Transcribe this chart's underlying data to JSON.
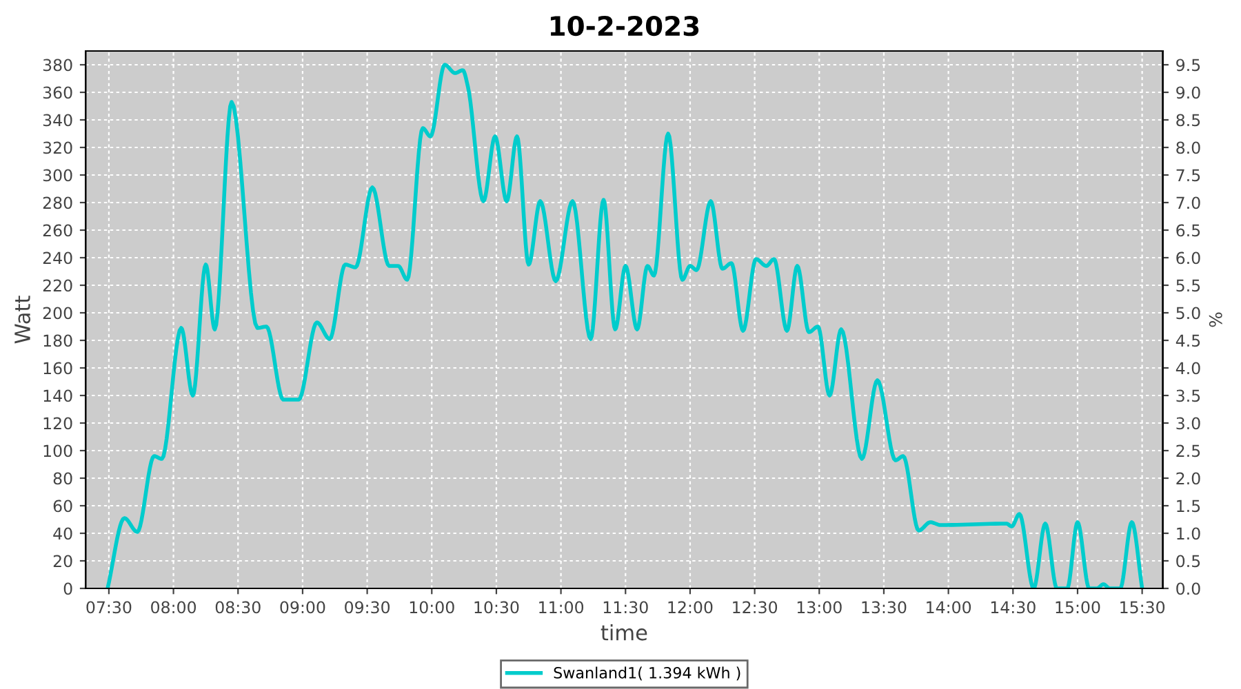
{
  "chart_data": {
    "type": "line",
    "title": "10-2-2023",
    "xlabel": "time",
    "ylabel": "Watt",
    "y2label": "%",
    "series": [
      {
        "name": "Swanland1( 1.394 kWh )",
        "color": "#00cccc",
        "x": [
          7.49,
          7.62,
          7.72,
          7.85,
          7.91,
          8.06,
          8.15,
          8.25,
          8.32,
          8.45,
          8.65,
          8.72,
          8.85,
          8.97,
          9.11,
          9.21,
          9.33,
          9.41,
          9.54,
          9.67,
          9.74,
          9.81,
          9.93,
          9.99,
          10.1,
          10.18,
          10.24,
          10.28,
          10.4,
          10.49,
          10.58,
          10.66,
          10.75,
          10.84,
          10.96,
          11.09,
          11.23,
          11.33,
          11.42,
          11.5,
          11.59,
          11.67,
          11.72,
          11.83,
          11.94,
          12.0,
          12.05,
          12.16,
          12.25,
          12.32,
          12.41,
          12.51,
          12.59,
          12.65,
          12.75,
          12.83,
          12.92,
          12.99,
          13.08,
          13.17,
          13.33,
          13.45,
          13.59,
          13.65,
          13.77,
          13.86,
          13.94,
          14.45,
          14.49,
          14.55,
          14.66,
          14.75,
          14.84,
          14.92,
          15.0,
          15.09,
          15.15,
          15.2,
          15.25,
          15.33,
          15.42,
          15.5
        ],
        "values": [
          0,
          51,
          41,
          96,
          94,
          189,
          140,
          235,
          188,
          353,
          189,
          190,
          137,
          137,
          193,
          181,
          235,
          233,
          291,
          234,
          234,
          224,
          334,
          328,
          380,
          374,
          376,
          364,
          281,
          328,
          281,
          328,
          235,
          281,
          223,
          281,
          181,
          282,
          188,
          234,
          188,
          234,
          227,
          330,
          224,
          234,
          231,
          281,
          232,
          236,
          187,
          239,
          234,
          239,
          187,
          234,
          186,
          190,
          140,
          188,
          94,
          151,
          93,
          96,
          42,
          48,
          46,
          47,
          45,
          54,
          0,
          47,
          0,
          0,
          48,
          0,
          0,
          3,
          0,
          0,
          48,
          0
        ]
      }
    ],
    "xlim": [
      7.32,
      15.66
    ],
    "xticks": [
      {
        "value": 7.5,
        "label": "07:30"
      },
      {
        "value": 8,
        "label": "08:00"
      },
      {
        "value": 8.5,
        "label": "08:30"
      },
      {
        "value": 9,
        "label": "09:00"
      },
      {
        "value": 9.5,
        "label": "09:30"
      },
      {
        "value": 10,
        "label": "10:00"
      },
      {
        "value": 10.5,
        "label": "10:30"
      },
      {
        "value": 11,
        "label": "11:00"
      },
      {
        "value": 11.5,
        "label": "11:30"
      },
      {
        "value": 12,
        "label": "12:00"
      },
      {
        "value": 12.5,
        "label": "12:30"
      },
      {
        "value": 13,
        "label": "13:00"
      },
      {
        "value": 13.5,
        "label": "13:30"
      },
      {
        "value": 14,
        "label": "14:00"
      },
      {
        "value": 14.5,
        "label": "14:30"
      },
      {
        "value": 15,
        "label": "15:00"
      },
      {
        "value": 15.5,
        "label": "15:30"
      }
    ],
    "ylim": [
      0,
      390
    ],
    "yticks": [
      0,
      20,
      40,
      60,
      80,
      100,
      120,
      140,
      160,
      180,
      200,
      220,
      240,
      260,
      280,
      300,
      320,
      340,
      360,
      380
    ],
    "y2lim": [
      0,
      9.75
    ],
    "y2ticks": [
      {
        "value": 0,
        "label": "0.0"
      },
      0.5,
      {
        "value": 1,
        "label": "1.0"
      },
      1.5,
      {
        "value": 2,
        "label": "2.0"
      },
      2.5,
      {
        "value": 3,
        "label": "3.0"
      },
      3.5,
      {
        "value": 4,
        "label": "4.0"
      },
      4.5,
      {
        "value": 5,
        "label": "5.0"
      },
      5.5,
      {
        "value": 6,
        "label": "6.0"
      },
      6.5,
      {
        "value": 7,
        "label": "7.0"
      },
      7.5,
      {
        "value": 8,
        "label": "8.0"
      },
      8.5,
      {
        "value": 9,
        "label": "9.0"
      },
      9.5
    ],
    "grid": true,
    "legend": "bottom",
    "marker": "none",
    "line_style": "solid"
  }
}
